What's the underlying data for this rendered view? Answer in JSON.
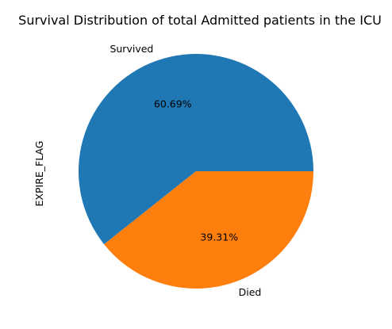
{
  "chart_data": {
    "type": "pie",
    "title": "Survival Distribution of total Admitted patients in the ICU",
    "ylabel": "EXPIRE_FLAG",
    "slices": [
      {
        "label": "Survived",
        "value": 60.69,
        "pct_label": "60.69%",
        "color": "#1f77b4"
      },
      {
        "label": "Died",
        "value": 39.31,
        "pct_label": "39.31%",
        "color": "#ff7f0e"
      }
    ],
    "start_angle_deg": 0,
    "direction": "counterclockwise"
  }
}
